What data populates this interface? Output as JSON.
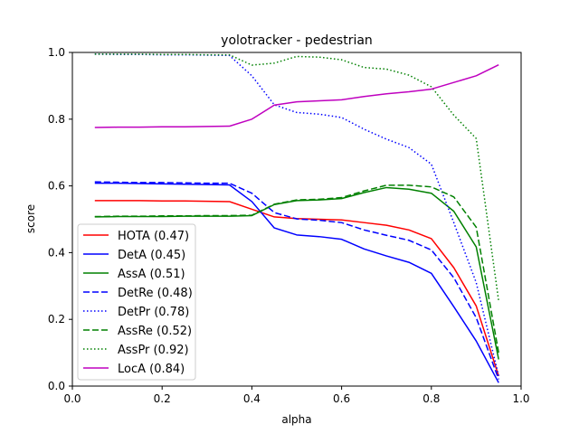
{
  "chart_data": {
    "type": "line",
    "title": "yolotracker - pedestrian",
    "xlabel": "alpha",
    "ylabel": "score",
    "xlim": [
      0.0,
      1.0
    ],
    "ylim": [
      0.0,
      1.0
    ],
    "xticks": [
      "0.0",
      "0.2",
      "0.4",
      "0.6",
      "0.8",
      "1.0"
    ],
    "yticks": [
      "0.0",
      "0.2",
      "0.4",
      "0.6",
      "0.8",
      "1.0"
    ],
    "grid": false,
    "legend_position": "lower-left",
    "x": [
      0.05,
      0.1,
      0.15,
      0.2,
      0.25,
      0.3,
      0.35,
      0.4,
      0.45,
      0.5,
      0.55,
      0.6,
      0.65,
      0.7,
      0.75,
      0.8,
      0.85,
      0.9,
      0.95
    ],
    "series": [
      {
        "name": "HOTA (0.47)",
        "color": "#ff0000",
        "dash": "solid",
        "values": [
          0.556,
          0.556,
          0.556,
          0.555,
          0.555,
          0.554,
          0.553,
          0.53,
          0.507,
          0.502,
          0.5,
          0.498,
          0.49,
          0.482,
          0.468,
          0.442,
          0.355,
          0.24,
          0.03
        ]
      },
      {
        "name": "DetA (0.45)",
        "color": "#0000ff",
        "dash": "solid",
        "values": [
          0.608,
          0.608,
          0.607,
          0.606,
          0.605,
          0.604,
          0.603,
          0.553,
          0.474,
          0.453,
          0.448,
          0.44,
          0.411,
          0.39,
          0.371,
          0.338,
          0.238,
          0.135,
          0.01
        ]
      },
      {
        "name": "AssA (0.51)",
        "color": "#008000",
        "dash": "solid",
        "values": [
          0.507,
          0.508,
          0.508,
          0.508,
          0.509,
          0.509,
          0.509,
          0.511,
          0.544,
          0.556,
          0.558,
          0.562,
          0.58,
          0.595,
          0.59,
          0.578,
          0.524,
          0.417,
          0.08
        ]
      },
      {
        "name": "DetRe (0.48)",
        "color": "#0000ff",
        "dash": "dashed",
        "values": [
          0.612,
          0.611,
          0.61,
          0.61,
          0.609,
          0.608,
          0.608,
          0.578,
          0.52,
          0.501,
          0.497,
          0.49,
          0.468,
          0.452,
          0.437,
          0.408,
          0.325,
          0.205,
          0.02
        ]
      },
      {
        "name": "DetPr (0.78)",
        "color": "#0000ff",
        "dash": "dotted",
        "values": [
          0.995,
          0.994,
          0.994,
          0.993,
          0.993,
          0.992,
          0.991,
          0.93,
          0.843,
          0.82,
          0.815,
          0.805,
          0.77,
          0.74,
          0.715,
          0.665,
          0.49,
          0.31,
          0.03
        ]
      },
      {
        "name": "AssRe (0.52)",
        "color": "#008000",
        "dash": "dashed",
        "values": [
          0.508,
          0.509,
          0.509,
          0.51,
          0.51,
          0.511,
          0.511,
          0.512,
          0.545,
          0.558,
          0.56,
          0.565,
          0.585,
          0.602,
          0.602,
          0.597,
          0.567,
          0.476,
          0.1
        ]
      },
      {
        "name": "AssPr (0.92)",
        "color": "#008000",
        "dash": "dotted",
        "values": [
          0.995,
          0.995,
          0.995,
          0.994,
          0.994,
          0.993,
          0.993,
          0.962,
          0.968,
          0.988,
          0.986,
          0.978,
          0.955,
          0.95,
          0.932,
          0.897,
          0.812,
          0.742,
          0.255
        ]
      },
      {
        "name": "LocA (0.84)",
        "color": "#bf00bf",
        "dash": "solid",
        "values": [
          0.775,
          0.776,
          0.776,
          0.777,
          0.777,
          0.778,
          0.779,
          0.8,
          0.842,
          0.852,
          0.855,
          0.858,
          0.868,
          0.876,
          0.882,
          0.89,
          0.91,
          0.93,
          0.963
        ]
      }
    ]
  }
}
